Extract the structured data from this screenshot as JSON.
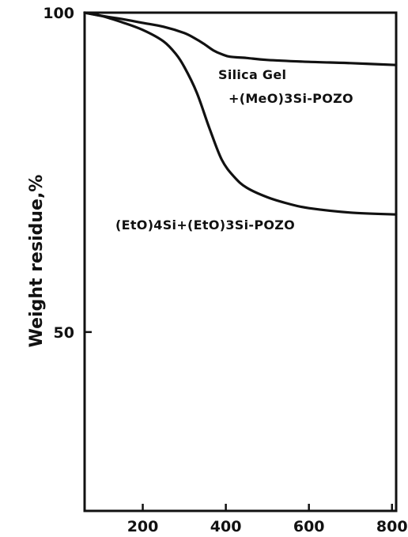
{
  "chart_data": {
    "type": "line",
    "title": "",
    "xlabel": "",
    "ylabel": "Weight residue,%",
    "xlim": [
      60,
      810
    ],
    "ylim": [
      22,
      100
    ],
    "x_ticks": [
      {
        "value": 200,
        "label": "200"
      },
      {
        "value": 400,
        "label": "400"
      },
      {
        "value": 600,
        "label": "600"
      },
      {
        "value": 800,
        "label": "800"
      }
    ],
    "y_ticks": [
      {
        "value": 100,
        "label": "100"
      },
      {
        "value": 50,
        "label": "50"
      }
    ],
    "grid": false,
    "series": [
      {
        "name": "Silica Gel +(MeO)3Si-POZO",
        "x": [
          60,
          100,
          150,
          200,
          250,
          300,
          330,
          350,
          370,
          390,
          410,
          450,
          500,
          600,
          700,
          810
        ],
        "y": [
          100,
          99.5,
          99.0,
          98.4,
          97.8,
          96.8,
          95.8,
          95.0,
          94.1,
          93.5,
          93.1,
          92.9,
          92.6,
          92.3,
          92.1,
          91.8
        ]
      },
      {
        "name": "(EtO)4Si+(EtO)3Si-POZO",
        "x": [
          60,
          100,
          150,
          200,
          250,
          280,
          300,
          330,
          360,
          390,
          420,
          450,
          500,
          550,
          600,
          700,
          810
        ],
        "y": [
          100,
          99.5,
          98.5,
          97.3,
          95.5,
          93.5,
          91.5,
          87.5,
          82.0,
          77.0,
          74.3,
          72.6,
          71.1,
          70.1,
          69.4,
          68.7,
          68.4
        ]
      }
    ],
    "annotations": [
      {
        "lines": [
          "Silica Gel",
          "+(MeO)3Si-POZO"
        ]
      },
      {
        "lines": [
          "(EtO)4Si+(EtO)3Si-POZO"
        ]
      }
    ]
  }
}
